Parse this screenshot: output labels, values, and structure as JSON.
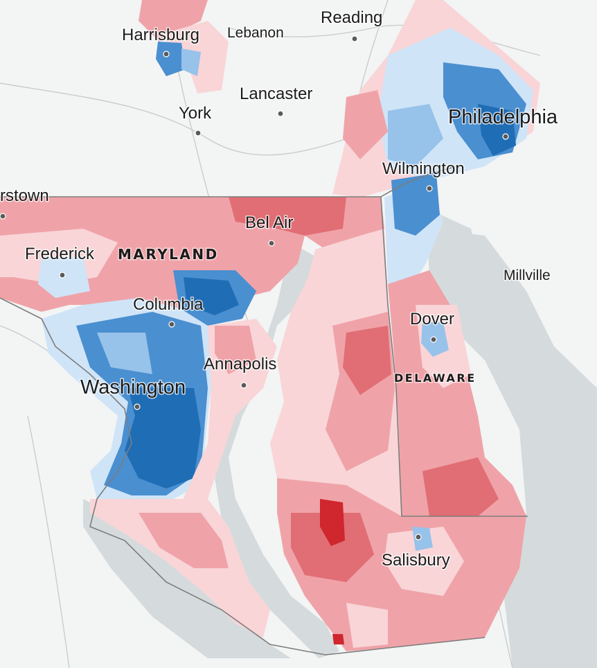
{
  "map": {
    "colors": {
      "background": "#f3f4f4",
      "water": "#d5dbdc",
      "roads": "#c9cccf",
      "state_border": "#7d7d7d",
      "dem_strong": "#1f6db5",
      "dem_medium": "#4a8fd0",
      "dem_lean": "#97c2ea",
      "dem_slight": "#cfe4f7",
      "rep_slight": "#f9d5d8",
      "rep_lean": "#efa3a8",
      "rep_medium": "#e06e74",
      "rep_strong": "#d0262e"
    },
    "state_labels": {
      "maryland": "MARYLAND",
      "delaware": "DELAWARE"
    },
    "cities": {
      "harrisburg": "Harrisburg",
      "lebanon": "Lebanon",
      "reading": "Reading",
      "lancaster": "Lancaster",
      "york": "York",
      "philadelphia": "Philadelphia",
      "wilmington": "Wilmington",
      "hagerstown_partial": "rstown",
      "bel_air": "Bel Air",
      "frederick": "Frederick",
      "columbia": "Columbia",
      "millville": "Millville",
      "dover": "Dover",
      "annapolis": "Annapolis",
      "washington": "Washington",
      "salisbury": "Salisbury"
    }
  }
}
